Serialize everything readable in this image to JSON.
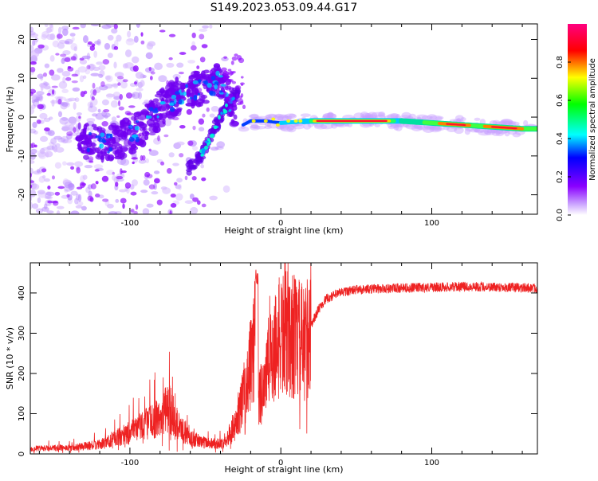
{
  "title": "S149.2023.053.09.44.G17",
  "chart_data": [
    {
      "type": "heatmap",
      "xlabel": "Height of straight line (km)",
      "ylabel": "Frequency (Hz)",
      "xlim": [
        -166,
        170
      ],
      "ylim": [
        -25,
        24
      ],
      "x_ticks": [
        -100,
        0,
        100
      ],
      "y_ticks": [
        -20,
        -10,
        0,
        10,
        20
      ],
      "colorbar": {
        "label": "Normalized spectral amplitude",
        "range": [
          0,
          1
        ],
        "ticks": [
          0.0,
          0.2,
          0.4,
          0.6,
          0.8
        ],
        "tick_labels": [
          "0.0",
          "0.2",
          "0.4",
          "0.6",
          "0.8"
        ],
        "colors": [
          "#ffffff",
          "#8a00ff",
          "#0000ff",
          "#00ffff",
          "#00ff00",
          "#ffff00",
          "#ff0000",
          "#ff0080"
        ]
      },
      "ridge": {
        "x": [
          -130,
          -115,
          -100,
          -90,
          -80,
          -70,
          -60,
          -50,
          -40,
          -35,
          -30,
          -25,
          -20,
          -10,
          0,
          20,
          40,
          60,
          80,
          100,
          120,
          140,
          160,
          170
        ],
        "y": [
          -6,
          -7,
          -5,
          -2,
          2,
          5,
          7,
          8,
          9,
          5,
          0,
          -2,
          -1,
          -1,
          -1.5,
          -1,
          -1,
          -1,
          -1,
          -1.5,
          -2,
          -2.5,
          -3,
          -3
        ]
      },
      "lower_branch": {
        "x": [
          -60,
          -55,
          -50,
          -45,
          -40,
          -35,
          -30
        ],
        "y": [
          -13,
          -11,
          -8,
          -4,
          0,
          3,
          6
        ]
      }
    },
    {
      "type": "line",
      "xlabel": "Height of straight line (km)",
      "ylabel": "SNR (10 * v/v)",
      "xlim": [
        -166,
        170
      ],
      "ylim": [
        0,
        475
      ],
      "x_ticks": [
        -100,
        0,
        100
      ],
      "y_ticks": [
        0,
        100,
        200,
        300,
        400
      ],
      "color": "#ee2222",
      "envelope_x": [
        -166,
        -140,
        -120,
        -110,
        -100,
        -90,
        -80,
        -75,
        -70,
        -60,
        -50,
        -40,
        -30,
        -25,
        -20,
        -17,
        -15,
        -10,
        -5,
        0,
        5,
        10,
        15,
        20,
        25,
        30,
        40,
        50,
        60,
        80,
        100,
        120,
        140,
        160,
        170
      ],
      "envelope_y": [
        10,
        12,
        18,
        30,
        40,
        60,
        70,
        90,
        60,
        30,
        22,
        20,
        70,
        140,
        220,
        300,
        130,
        200,
        260,
        290,
        300,
        290,
        270,
        320,
        360,
        385,
        402,
        408,
        410,
        412,
        414,
        416,
        415,
        413,
        412
      ]
    }
  ]
}
